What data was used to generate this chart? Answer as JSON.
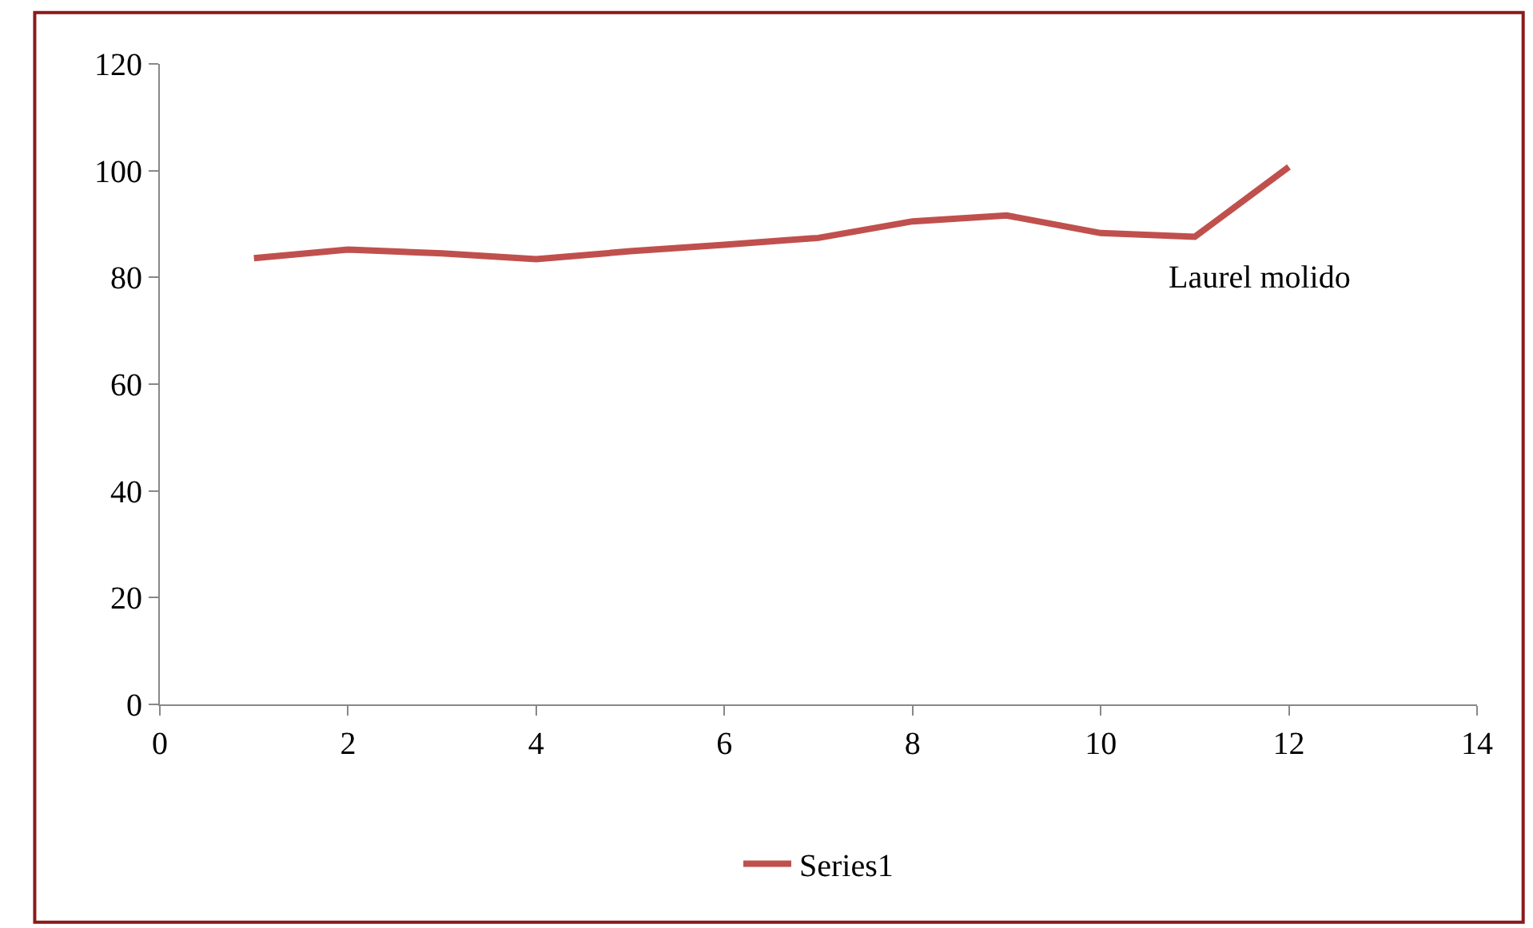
{
  "chart_data": {
    "type": "line",
    "x": [
      1,
      2,
      3,
      4,
      5,
      6,
      7,
      8,
      9,
      10,
      11,
      12
    ],
    "series": [
      {
        "name": "Series1",
        "color": "#c0504d",
        "values": [
          83.6,
          85.2,
          84.5,
          83.4,
          84.9,
          86.1,
          87.4,
          90.5,
          91.6,
          88.3,
          87.6,
          100.7
        ]
      }
    ],
    "xlim": [
      0,
      14
    ],
    "xticks": [
      0,
      2,
      4,
      6,
      8,
      10,
      12,
      14
    ],
    "ylim": [
      0,
      120
    ],
    "yticks": [
      0,
      20,
      40,
      60,
      80,
      100,
      120
    ],
    "annotations": [
      "Laurel molido"
    ],
    "legend": "bottom",
    "marker": "none",
    "line_style": "solid"
  }
}
